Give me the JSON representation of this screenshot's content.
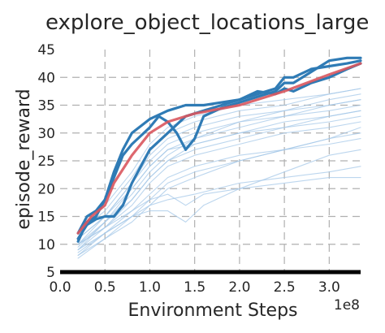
{
  "chart_data": {
    "type": "line",
    "title": "explore_object_locations_large",
    "xlabel": "Environment Steps",
    "ylabel": "episode_reward",
    "x_exponent_label": "1e8",
    "x_scale": 100000000.0,
    "xlim": [
      0.0,
      3.35
    ],
    "ylim": [
      5,
      45
    ],
    "x_ticks": [
      0.0,
      0.5,
      1.0,
      1.5,
      2.0,
      2.5,
      3.0
    ],
    "x_tick_labels": [
      "0.0",
      "0.5",
      "1.0",
      "1.5",
      "2.0",
      "2.5",
      "3.0"
    ],
    "y_ticks": [
      5,
      10,
      15,
      20,
      25,
      30,
      35,
      40,
      45
    ],
    "y_tick_labels": [
      "5",
      "10",
      "15",
      "20",
      "25",
      "30",
      "35",
      "40",
      "45"
    ],
    "grid": true,
    "grid_style": "dashed",
    "legend": "none",
    "colors": {
      "background_series": "#a6c8e8",
      "highlight_series": "#2f7bb5",
      "mean_series": "#d9575e",
      "grid": "#b0b0b0",
      "text": "#262626"
    },
    "series": [
      {
        "role": "mean",
        "x": [
          0.2,
          0.35,
          0.5,
          0.6,
          0.8,
          1.0,
          1.2,
          1.5,
          2.0,
          2.5,
          3.0,
          3.35
        ],
        "y": [
          12,
          15,
          17,
          21,
          26,
          30,
          32,
          33.5,
          35,
          37.5,
          40.5,
          42.5
        ]
      },
      {
        "role": "highlight",
        "x": [
          0.2,
          0.3,
          0.4,
          0.5,
          0.6,
          0.7,
          0.8,
          1.0,
          1.1,
          1.2,
          1.3,
          1.4,
          1.5,
          1.6,
          1.8,
          2.0,
          2.2,
          2.4,
          2.5,
          2.6,
          2.8,
          3.0,
          3.2,
          3.35
        ],
        "y": [
          12,
          15,
          16,
          18,
          22,
          26,
          28,
          31,
          33,
          32,
          30,
          27,
          29,
          33,
          34.5,
          35.5,
          36.5,
          37.5,
          39,
          39,
          41,
          43,
          43.5,
          43.5
        ]
      },
      {
        "role": "highlight",
        "x": [
          0.2,
          0.3,
          0.4,
          0.5,
          0.6,
          0.7,
          0.8,
          1.0,
          1.2,
          1.4,
          1.6,
          1.8,
          2.0,
          2.2,
          2.4,
          2.5,
          2.6,
          2.8,
          3.0,
          3.2,
          3.35
        ],
        "y": [
          11,
          13.5,
          14.5,
          15,
          15,
          17,
          21,
          27,
          30,
          33,
          34,
          35,
          36,
          37,
          38,
          40,
          40,
          41.5,
          42,
          42.5,
          43
        ]
      },
      {
        "role": "highlight",
        "x": [
          0.2,
          0.3,
          0.4,
          0.5,
          0.6,
          0.7,
          0.8,
          1.0,
          1.2,
          1.4,
          1.6,
          1.8,
          2.0,
          2.2,
          2.4,
          2.5,
          2.6,
          2.8,
          3.0,
          3.2,
          3.35
        ],
        "y": [
          10.5,
          14,
          15,
          18,
          23,
          27,
          30,
          32.5,
          34,
          35,
          35,
          35.5,
          36,
          37.5,
          37,
          38,
          37.5,
          39,
          40,
          41.5,
          42.5
        ]
      },
      {
        "role": "background",
        "x": [
          0.2,
          0.5,
          0.8,
          1.0,
          1.2,
          1.5,
          2.0,
          2.5,
          3.0,
          3.35
        ],
        "y": [
          9,
          14,
          20,
          24,
          27,
          29,
          32,
          34,
          36,
          37
        ]
      },
      {
        "role": "background",
        "x": [
          0.2,
          0.5,
          0.8,
          1.0,
          1.2,
          1.5,
          2.0,
          2.5,
          3.0,
          3.35
        ],
        "y": [
          10,
          13,
          18,
          22,
          25,
          27,
          29,
          31,
          33,
          34
        ]
      },
      {
        "role": "background",
        "x": [
          0.2,
          0.5,
          0.8,
          1.0,
          1.2,
          1.5,
          2.0,
          2.5,
          3.0,
          3.35
        ],
        "y": [
          8,
          12,
          16,
          19,
          22,
          24,
          26,
          27,
          29,
          30
        ]
      },
      {
        "role": "background",
        "x": [
          0.2,
          0.5,
          0.8,
          1.0,
          1.2,
          1.5,
          2.0,
          2.5,
          3.0,
          3.35
        ],
        "y": [
          11,
          15,
          21,
          25,
          28,
          30,
          32,
          33,
          35,
          36
        ]
      },
      {
        "role": "background",
        "x": [
          0.2,
          0.5,
          0.8,
          1.0,
          1.2,
          1.5,
          2.0,
          2.5,
          3.0,
          3.35
        ],
        "y": [
          7.5,
          11,
          14,
          17,
          20,
          22,
          25,
          27,
          28,
          29
        ]
      },
      {
        "role": "background",
        "x": [
          0.2,
          0.5,
          0.8,
          1.0,
          1.2,
          1.5,
          2.0,
          2.5,
          3.0,
          3.35
        ],
        "y": [
          9.5,
          14,
          19,
          23,
          26,
          29,
          31,
          33,
          34,
          35
        ]
      },
      {
        "role": "background",
        "x": [
          0.2,
          0.5,
          0.8,
          1.0,
          1.2,
          1.5,
          2.0,
          2.5,
          3.0,
          3.35
        ],
        "y": [
          12,
          16,
          22,
          27,
          30,
          32,
          34,
          35,
          37,
          38
        ]
      },
      {
        "role": "background",
        "x": [
          0.2,
          0.5,
          0.8,
          1.0,
          1.2,
          1.5,
          2.0,
          2.5,
          3.0,
          3.35
        ],
        "y": [
          8.5,
          12,
          15,
          17,
          18,
          19,
          21,
          22,
          23,
          24
        ]
      },
      {
        "role": "background",
        "x": [
          0.2,
          0.5,
          0.8,
          1.0,
          1.2,
          1.4,
          1.6,
          2.0,
          2.5,
          3.0,
          3.35
        ],
        "y": [
          10,
          13,
          16,
          18,
          19,
          17,
          19,
          20,
          21,
          22,
          22
        ]
      },
      {
        "role": "background",
        "x": [
          0.2,
          0.5,
          0.8,
          1.0,
          1.2,
          1.5,
          2.0,
          2.5,
          3.0,
          3.35
        ],
        "y": [
          9,
          13,
          17,
          21,
          24,
          26,
          28,
          30,
          31,
          32
        ]
      },
      {
        "role": "background",
        "x": [
          0.2,
          0.5,
          0.8,
          1.0,
          1.2,
          1.5,
          2.0,
          2.5,
          3.0,
          3.35
        ],
        "y": [
          11,
          15,
          20,
          24,
          27,
          28,
          30,
          31,
          32,
          33
        ]
      },
      {
        "role": "background",
        "x": [
          0.2,
          0.5,
          0.8,
          1.0,
          1.2,
          1.5,
          2.0,
          2.5,
          3.0,
          3.35
        ],
        "y": [
          10,
          14,
          18,
          22,
          25,
          28,
          30,
          32,
          33,
          34
        ]
      },
      {
        "role": "background",
        "x": [
          0.2,
          0.5,
          0.8,
          1.0,
          1.2,
          1.5,
          2.0,
          2.5,
          3.0,
          3.35
        ],
        "y": [
          12,
          17,
          23,
          28,
          31,
          33,
          35,
          36,
          37,
          38
        ]
      },
      {
        "role": "background",
        "x": [
          0.2,
          0.5,
          0.8,
          1.0,
          1.2,
          1.4,
          1.6,
          2.0,
          2.5,
          3.0,
          3.35
        ],
        "y": [
          9,
          12,
          15,
          16,
          16,
          14,
          17,
          20,
          23,
          26,
          27
        ]
      },
      {
        "role": "background",
        "x": [
          0.2,
          0.5,
          0.8,
          1.0,
          1.2,
          1.5,
          2.0,
          2.5,
          3.0,
          3.35
        ],
        "y": [
          10,
          15,
          21,
          26,
          29,
          31,
          33,
          34,
          35,
          36
        ]
      },
      {
        "role": "background",
        "x": [
          0.2,
          0.5,
          0.8,
          1.0,
          1.2,
          1.5,
          2.0,
          2.5,
          3.0,
          3.35
        ],
        "y": [
          8,
          11,
          15,
          18,
          21,
          23,
          25,
          27,
          29,
          31
        ]
      }
    ]
  }
}
